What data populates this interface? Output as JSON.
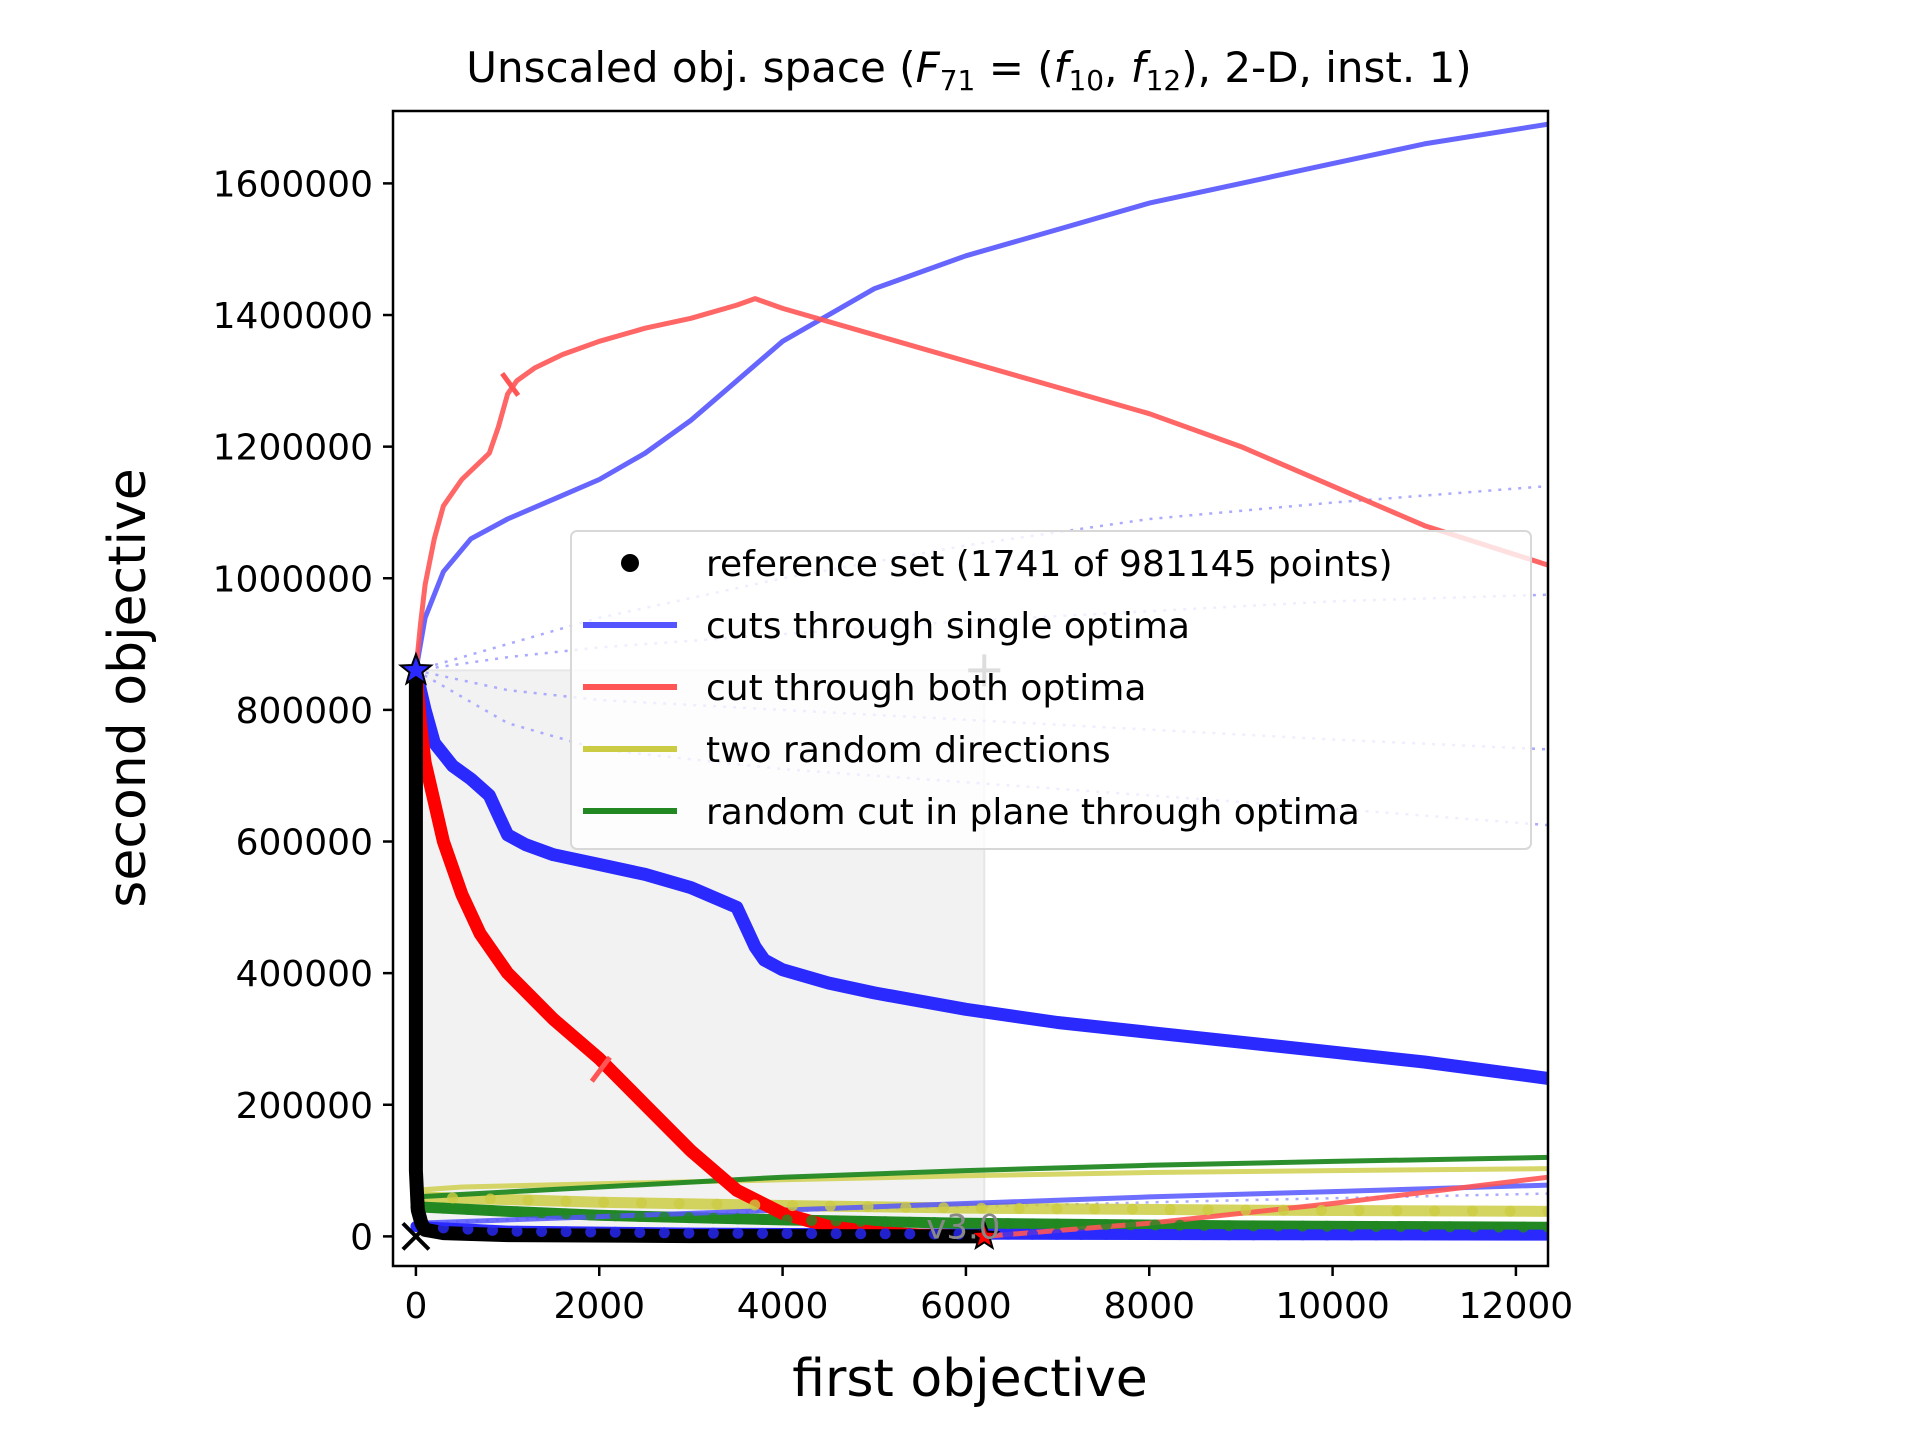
{
  "chart_data": {
    "type": "line",
    "title_parts": {
      "prefix": "Unscaled obj. space (",
      "F": "F",
      "F_sub": "71",
      "eq": " = (",
      "f1": "f",
      "f1_sub": "10",
      "comma": ", ",
      "f2": "f",
      "f2_sub": "12",
      "suffix": "), 2-D, inst. 1)"
    },
    "xlabel": "first objective",
    "ylabel": "second objective",
    "xlim": [
      -250,
      12350
    ],
    "ylim": [
      -45000,
      1710000
    ],
    "xticks": [
      0,
      2000,
      4000,
      6000,
      8000,
      10000,
      12000
    ],
    "xtick_labels": [
      "0",
      "2000",
      "4000",
      "6000",
      "8000",
      "10000",
      "12000"
    ],
    "yticks": [
      0,
      200000,
      400000,
      600000,
      800000,
      1000000,
      1200000,
      1400000,
      1600000
    ],
    "ytick_labels": [
      "0",
      "200000",
      "400000",
      "600000",
      "800000",
      "1000000",
      "1200000",
      "1400000",
      "1600000"
    ],
    "grid": false,
    "legend_position": "center-right",
    "legend": [
      {
        "label": "reference set (1741 of 981145 points)",
        "color": "#000000",
        "marker": "dot"
      },
      {
        "label": "cuts through single optima",
        "color": "#5555ff",
        "marker": "line"
      },
      {
        "label": "cut through both optima",
        "color": "#ff5555",
        "marker": "line"
      },
      {
        "label": "two random directions",
        "color": "#cccc44",
        "marker": "line"
      },
      {
        "label": "random cut in plane through optima",
        "color": "#228822",
        "marker": "line"
      }
    ],
    "annotation": "v3.0",
    "optima": {
      "first": [
        0,
        860000
      ],
      "second": [
        6200,
        0
      ],
      "ideal": [
        0,
        0
      ],
      "nadir_marker": [
        6200,
        860000
      ]
    },
    "series": [
      {
        "role": "blue-solid-upper",
        "color": "#5555ff",
        "x": [
          0,
          100,
          300,
          600,
          1000,
          1500,
          2000,
          2500,
          3000,
          3500,
          4000,
          5000,
          6000,
          7000,
          8000,
          9000,
          10000,
          11000,
          12350
        ],
        "y": [
          860000,
          940000,
          1010000,
          1060000,
          1090000,
          1120000,
          1150000,
          1190000,
          1240000,
          1300000,
          1360000,
          1440000,
          1490000,
          1530000,
          1570000,
          1600000,
          1630000,
          1660000,
          1690000
        ]
      },
      {
        "role": "blue-thick-front",
        "color": "#2a2aff",
        "x": [
          0,
          100,
          200,
          400,
          600,
          800,
          900,
          1000,
          1200,
          1500,
          2000,
          2500,
          3000,
          3500,
          3700,
          3800,
          4000,
          4500,
          5000,
          6000,
          7000,
          8000,
          9000,
          10000,
          11000,
          12350
        ],
        "y": [
          860000,
          800000,
          750000,
          715000,
          695000,
          670000,
          640000,
          610000,
          595000,
          580000,
          565000,
          550000,
          530000,
          500000,
          440000,
          420000,
          405000,
          385000,
          370000,
          345000,
          325000,
          310000,
          295000,
          280000,
          265000,
          240000
        ]
      },
      {
        "role": "red-solid-upper",
        "color": "#ff5555",
        "x": [
          0,
          50,
          100,
          200,
          300,
          500,
          800,
          900,
          1000,
          1100,
          1300,
          1600,
          2000,
          2500,
          3000,
          3500,
          3700,
          4000,
          5000,
          6000,
          7000,
          8000,
          9000,
          10000,
          11000,
          12350
        ],
        "y": [
          860000,
          930000,
          990000,
          1060000,
          1110000,
          1150000,
          1190000,
          1230000,
          1280000,
          1300000,
          1320000,
          1340000,
          1360000,
          1380000,
          1395000,
          1415000,
          1425000,
          1410000,
          1370000,
          1330000,
          1290000,
          1250000,
          1200000,
          1140000,
          1080000,
          1020000
        ]
      },
      {
        "role": "red-thick-front",
        "color": "#ff0000",
        "x": [
          0,
          50,
          100,
          200,
          300,
          500,
          700,
          1000,
          1500,
          2000,
          2500,
          3000,
          3500,
          4000,
          4500,
          5000,
          5500,
          6000,
          6200
        ],
        "y": [
          860000,
          780000,
          720000,
          660000,
          600000,
          520000,
          460000,
          400000,
          330000,
          270000,
          200000,
          130000,
          70000,
          35000,
          15000,
          6000,
          2000,
          500,
          0
        ]
      },
      {
        "role": "red-solid-lower",
        "color": "#ff5555",
        "x": [
          6200,
          8000,
          10000,
          12350
        ],
        "y": [
          0,
          20000,
          50000,
          90000
        ]
      },
      {
        "role": "blue-solid-lower",
        "color": "#5555ff",
        "x": [
          0,
          2000,
          4000,
          6000,
          8000,
          10000,
          12350
        ],
        "y": [
          20000,
          30000,
          40000,
          50000,
          60000,
          68000,
          78000
        ]
      },
      {
        "role": "blue-thick-bottom",
        "color": "#2a2aff",
        "x": [
          0,
          1000,
          3000,
          6000,
          9000,
          12350
        ],
        "y": [
          15000,
          8000,
          5000,
          3500,
          2500,
          2000
        ]
      },
      {
        "role": "green-solid-upper",
        "color": "#228822",
        "x": [
          0,
          2000,
          4000,
          6000,
          8000,
          10000,
          12350
        ],
        "y": [
          60000,
          75000,
          90000,
          100000,
          108000,
          114000,
          120000
        ]
      },
      {
        "role": "green-thick-front",
        "color": "#228822",
        "x": [
          0,
          1000,
          2000,
          4000,
          6000,
          9000,
          12350
        ],
        "y": [
          45000,
          38000,
          32000,
          25000,
          20000,
          16000,
          14000
        ]
      },
      {
        "role": "yellow-solid-upper",
        "color": "#cccc44",
        "x": [
          0,
          500,
          2000,
          4000,
          6000,
          8000,
          10000,
          12350
        ],
        "y": [
          70000,
          75000,
          80000,
          86000,
          92000,
          97000,
          100000,
          103000
        ]
      },
      {
        "role": "yellow-thick-front",
        "color": "#cccc44",
        "x": [
          0,
          2000,
          4000,
          6000,
          9000,
          12350
        ],
        "y": [
          60000,
          52000,
          47000,
          43000,
          40000,
          38000
        ]
      },
      {
        "role": "reference-set",
        "color": "#000000",
        "x": [
          0,
          0,
          0,
          20,
          60,
          100,
          300,
          1000,
          3000,
          6200
        ],
        "y": [
          860000,
          500000,
          100000,
          40000,
          20000,
          10000,
          5000,
          2000,
          500,
          0
        ]
      },
      {
        "role": "blue-dotted-1",
        "color": "#aaaaff",
        "x": [
          0,
          1000,
          2000,
          4000,
          6000,
          8000,
          10000,
          12350
        ],
        "y": [
          860000,
          900000,
          940000,
          1000000,
          1050000,
          1090000,
          1115000,
          1140000
        ]
      },
      {
        "role": "blue-dotted-2",
        "color": "#aaaaff",
        "x": [
          0,
          1000,
          2000,
          4000,
          6000,
          8000,
          10000,
          12350
        ],
        "y": [
          860000,
          880000,
          895000,
          915000,
          935000,
          950000,
          965000,
          975000
        ]
      },
      {
        "role": "blue-dotted-3",
        "color": "#aaaaff",
        "x": [
          0,
          1000,
          2000,
          4000,
          6000,
          8000,
          10000,
          12350
        ],
        "y": [
          860000,
          830000,
          815000,
          800000,
          785000,
          770000,
          755000,
          740000
        ]
      },
      {
        "role": "blue-dotted-4",
        "color": "#aaaaff",
        "x": [
          0,
          1000,
          2000,
          4000,
          6000,
          8000,
          10000,
          12350
        ],
        "y": [
          860000,
          780000,
          740000,
          710000,
          690000,
          670000,
          650000,
          625000
        ]
      },
      {
        "role": "blue-dotted-5",
        "color": "#aaaaff",
        "x": [
          0,
          3000,
          6000,
          9000,
          12350
        ],
        "y": [
          20000,
          35000,
          45000,
          55000,
          65000
        ]
      }
    ],
    "marker_dots": [
      {
        "color": "#2a2aff",
        "on": "blue-thick-bottom",
        "x_start": 300,
        "x_end": 12350,
        "count": 46
      },
      {
        "color": "#228822",
        "on": "green-thick-front",
        "x_start": 300,
        "x_end": 12350,
        "count": 46
      },
      {
        "color": "#cccc44",
        "on": "yellow-thick-front",
        "x_start": 400,
        "x_end": 12350,
        "count": 30
      }
    ]
  }
}
